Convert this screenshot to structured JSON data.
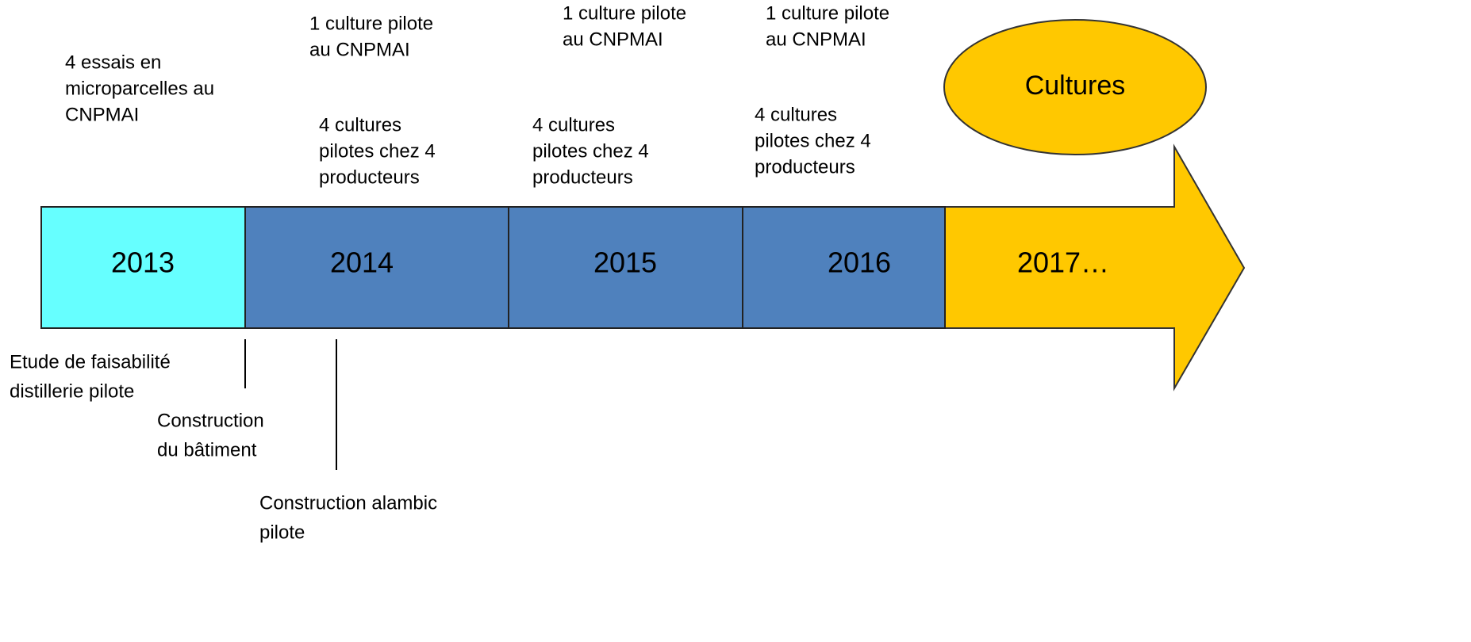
{
  "timeline": {
    "years": [
      "2013",
      "2014",
      "2015",
      "2016",
      "2017…"
    ],
    "goal": "Cultures",
    "above": [
      {
        "lines": [
          "4 essais en",
          "microparcelles au",
          "CNPMAI"
        ]
      },
      {
        "lines": [
          "1 culture pilote",
          "au CNPMAI"
        ]
      },
      {
        "lines": [
          "4 cultures",
          "pilotes chez  4",
          "producteurs"
        ]
      },
      {
        "lines": [
          "1 culture pilote",
          "au CNPMAI"
        ]
      },
      {
        "lines": [
          "4 cultures",
          "pilotes chez  4",
          "producteurs"
        ]
      },
      {
        "lines": [
          "1 culture pilote",
          "au CNPMAI"
        ]
      },
      {
        "lines": [
          "4 cultures",
          "pilotes chez  4",
          "producteurs"
        ]
      }
    ],
    "below": [
      {
        "lines": [
          "Etude de faisabilité",
          "distillerie pilote"
        ]
      },
      {
        "lines": [
          "Construction",
          "du bâtiment"
        ]
      },
      {
        "lines": [
          "Construction alambic",
          "pilote"
        ]
      }
    ]
  }
}
